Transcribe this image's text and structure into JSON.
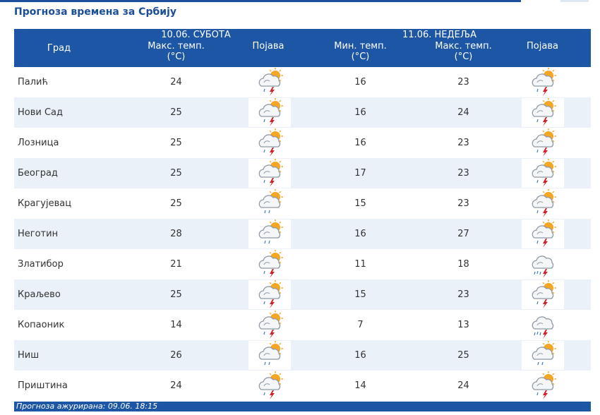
{
  "title": "Прогноза времена за Србију",
  "header": {
    "city_label": "Град",
    "day1": {
      "date": "10.06. СУБОТА",
      "max_label": "Макс. темп.",
      "max_unit": "(°C)",
      "phenomenon_label": "Појава"
    },
    "day2": {
      "date": "11.06. НЕДЕЉА",
      "min_label": "Мин. темп.",
      "min_unit": "(°C)",
      "max_label": "Макс. темп.",
      "max_unit": "(°C)",
      "phenomenon_label": "Појава"
    }
  },
  "rows": [
    {
      "city": "Палић",
      "d1_max": "24",
      "d1_icon": "sun-cloud-thunder-icon",
      "d2_min": "16",
      "d2_max": "23",
      "d2_icon": "sun-cloud-thunder-icon"
    },
    {
      "city": "Нови Сад",
      "d1_max": "25",
      "d1_icon": "sun-cloud-thunder-icon",
      "d2_min": "16",
      "d2_max": "24",
      "d2_icon": "sun-cloud-thunder-icon"
    },
    {
      "city": "Лозница",
      "d1_max": "25",
      "d1_icon": "sun-cloud-thunder-icon",
      "d2_min": "16",
      "d2_max": "23",
      "d2_icon": "sun-cloud-thunder-icon"
    },
    {
      "city": "Београд",
      "d1_max": "25",
      "d1_icon": "sun-cloud-thunder-icon",
      "d2_min": "17",
      "d2_max": "23",
      "d2_icon": "sun-cloud-thunder-icon"
    },
    {
      "city": "Крагујевац",
      "d1_max": "25",
      "d1_icon": "sun-cloud-shower-icon",
      "d2_min": "15",
      "d2_max": "23",
      "d2_icon": "sun-cloud-thunder-icon"
    },
    {
      "city": "Неготин",
      "d1_max": "28",
      "d1_icon": "sun-cloud-shower-icon",
      "d2_min": "16",
      "d2_max": "27",
      "d2_icon": "sun-cloud-thunder-icon"
    },
    {
      "city": "Златибор",
      "d1_max": "21",
      "d1_icon": "sun-cloud-thunder-icon",
      "d2_min": "11",
      "d2_max": "18",
      "d2_icon": "cloud-thunder-rain-icon"
    },
    {
      "city": "Краљево",
      "d1_max": "25",
      "d1_icon": "sun-cloud-thunder-icon",
      "d2_min": "15",
      "d2_max": "23",
      "d2_icon": "sun-cloud-thunder-icon"
    },
    {
      "city": "Копаоник",
      "d1_max": "14",
      "d1_icon": "sun-cloud-thunder-icon",
      "d2_min": "7",
      "d2_max": "13",
      "d2_icon": "cloud-thunder-rain-icon"
    },
    {
      "city": "Ниш",
      "d1_max": "26",
      "d1_icon": "sun-cloud-shower-icon",
      "d2_min": "16",
      "d2_max": "25",
      "d2_icon": "sun-cloud-shower-icon"
    },
    {
      "city": "Приштина",
      "d1_max": "24",
      "d1_icon": "sun-cloud-thunder-icon",
      "d2_min": "14",
      "d2_max": "24",
      "d2_icon": "sun-cloud-thunder-icon"
    }
  ],
  "footer": {
    "updated": "Прогноза ажурирана:  09.06.  18:15"
  },
  "colors": {
    "header_bg": "#1e56a6",
    "title": "#1b4e98",
    "row_alt": "#eaf1f9",
    "sun": "#f5a623",
    "cloud": "#a9b2bb",
    "bolt": "#d0202a"
  }
}
